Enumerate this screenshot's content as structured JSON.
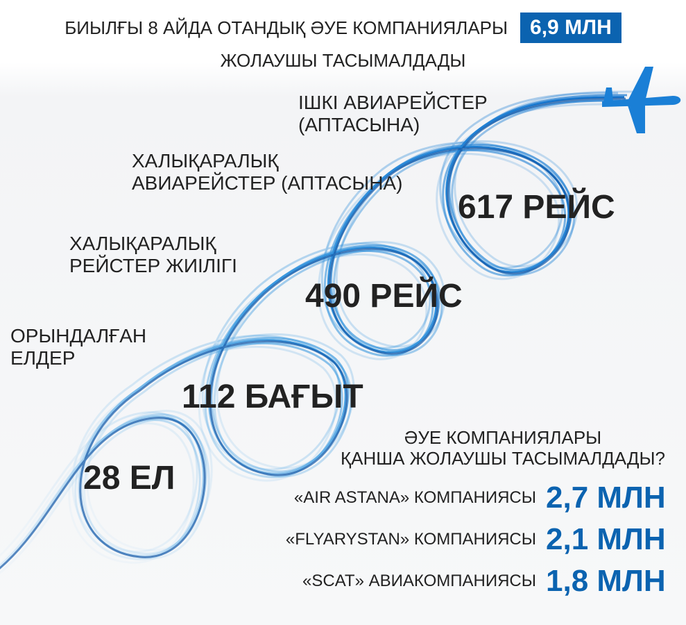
{
  "header": {
    "before": "БИЫЛҒЫ 8 АЙДА ОТАНДЫҚ ӘУЕ КОМПАНИЯЛАРЫ",
    "highlight": "6,9 МЛН",
    "after": "ЖОЛАУШЫ ТАСЫМАЛДАДЫ"
  },
  "colors": {
    "accent": "#0b63b0",
    "ribbon": "#4aa3e0",
    "text": "#222222"
  },
  "icons": {
    "plane": "airplane-icon"
  },
  "stats": [
    {
      "label_lines": [
        "ІШКІ АВИАРЕЙСТЕР",
        "(АПТАСЫНА)"
      ],
      "value": "617 РЕЙС"
    },
    {
      "label_lines": [
        "ХАЛЫҚАРАЛЫҚ",
        "АВИАРЕЙСТЕР (АПТАСЫНА)"
      ],
      "value": "490 РЕЙС"
    },
    {
      "label_lines": [
        "ХАЛЫҚАРАЛЫҚ",
        "РЕЙСТЕР ЖИІЛІГІ"
      ],
      "value": "112 БАҒЫТ"
    },
    {
      "label_lines": [
        "ОРЫНДАЛҒАН",
        "ЕЛДЕР"
      ],
      "value": "28 ЕЛ"
    }
  ],
  "airlines": {
    "question_lines": [
      "ӘУЕ КОМПАНИЯЛАРЫ",
      "ҚАНША ЖОЛАУШЫ ТАСЫМАЛДАДЫ?"
    ],
    "rows": [
      {
        "label": "«AIR ASTANA» КОМПАНИЯСЫ",
        "value": "2,7 МЛН"
      },
      {
        "label": "«FLYARYSTAN»  КОМПАНИЯСЫ",
        "value": "2,1 МЛН"
      },
      {
        "label": "«SCAT» АВИАКОМПАНИЯСЫ",
        "value": "1,8 МЛН"
      }
    ]
  }
}
